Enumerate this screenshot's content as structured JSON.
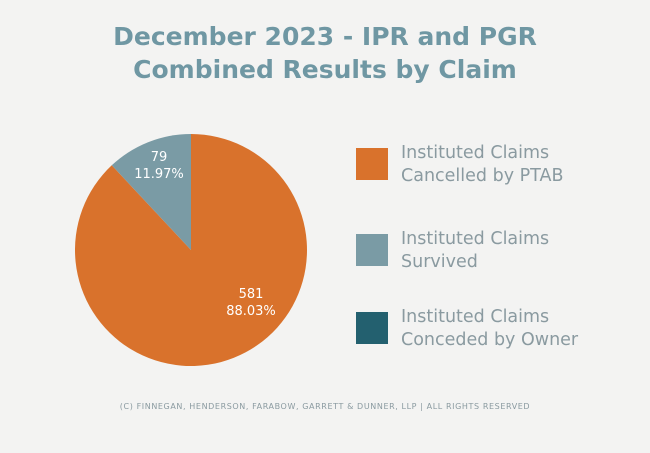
{
  "title_line1": "December 2023 - IPR and PGR",
  "title_line2": "Combined Results by Claim",
  "footer": "(C) FINNEGAN, HENDERSON, FARABOW, GARRETT & DUNNER, LLP | ALL RIGHTS RESERVED",
  "chart_data": {
    "type": "pie",
    "title": "December 2023 - IPR and PGR Combined Results by Claim",
    "legend_position": "right",
    "slices": [
      {
        "label": "Instituted Claims Cancelled by PTAB",
        "value": 581,
        "percent_label": "88.03%",
        "value_label": "581",
        "color": "#d9722c"
      },
      {
        "label": "Instituted Claims Survived",
        "value": 79,
        "percent_label": "11.97%",
        "value_label": "79",
        "color": "#7a9ba5"
      },
      {
        "label": "Instituted Claims Conceded by Owner",
        "value": 0,
        "percent_label": "",
        "value_label": "",
        "color": "#23606f"
      }
    ]
  },
  "legend": [
    {
      "line1": "Instituted Claims",
      "line2": "Cancelled by PTAB",
      "color": "#d9722c"
    },
    {
      "line1": "Instituted Claims",
      "line2": "Survived",
      "color": "#7a9ba5"
    },
    {
      "line1": "Instituted Claims",
      "line2": "Conceded by Owner",
      "color": "#23606f"
    }
  ]
}
